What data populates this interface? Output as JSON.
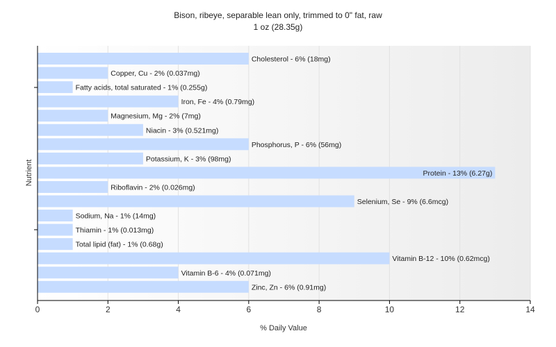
{
  "chart_data": {
    "type": "bar",
    "orientation": "horizontal",
    "title": "Bison, ribeye, separable lean only, trimmed to 0\" fat, raw",
    "subtitle": "1 oz (28.35g)",
    "xlabel": "% Daily Value",
    "ylabel": "Nutrient",
    "xlim": [
      0,
      14
    ],
    "xticks": [
      0,
      2,
      4,
      6,
      8,
      10,
      12,
      14
    ],
    "grid": true,
    "bar_color": "#c6dcff",
    "categories": [
      "Cholesterol",
      "Copper, Cu",
      "Fatty acids, total saturated",
      "Iron, Fe",
      "Magnesium, Mg",
      "Niacin",
      "Phosphorus, P",
      "Potassium, K",
      "Protein",
      "Riboflavin",
      "Selenium, Se",
      "Sodium, Na",
      "Thiamin",
      "Total lipid (fat)",
      "Vitamin B-12",
      "Vitamin B-6",
      "Zinc, Zn"
    ],
    "values": [
      6,
      2,
      1,
      4,
      2,
      3,
      6,
      3,
      13,
      2,
      9,
      1,
      1,
      1,
      10,
      4,
      6
    ],
    "labels": [
      "Cholesterol - 6% (18mg)",
      "Copper, Cu - 2% (0.037mg)",
      "Fatty acids, total saturated - 1% (0.255g)",
      "Iron, Fe - 4% (0.79mg)",
      "Magnesium, Mg - 2% (7mg)",
      "Niacin - 3% (0.521mg)",
      "Phosphorus, P - 6% (56mg)",
      "Potassium, K - 3% (98mg)",
      "Protein - 13% (6.27g)",
      "Riboflavin - 2% (0.026mg)",
      "Selenium, Se - 9% (6.6mcg)",
      "Sodium, Na - 1% (14mg)",
      "Thiamin - 1% (0.013mg)",
      "Total lipid (fat) - 1% (0.68g)",
      "Vitamin B-12 - 10% (0.62mcg)",
      "Vitamin B-6 - 4% (0.071mg)",
      "Zinc, Zn - 6% (0.91mg)"
    ]
  }
}
